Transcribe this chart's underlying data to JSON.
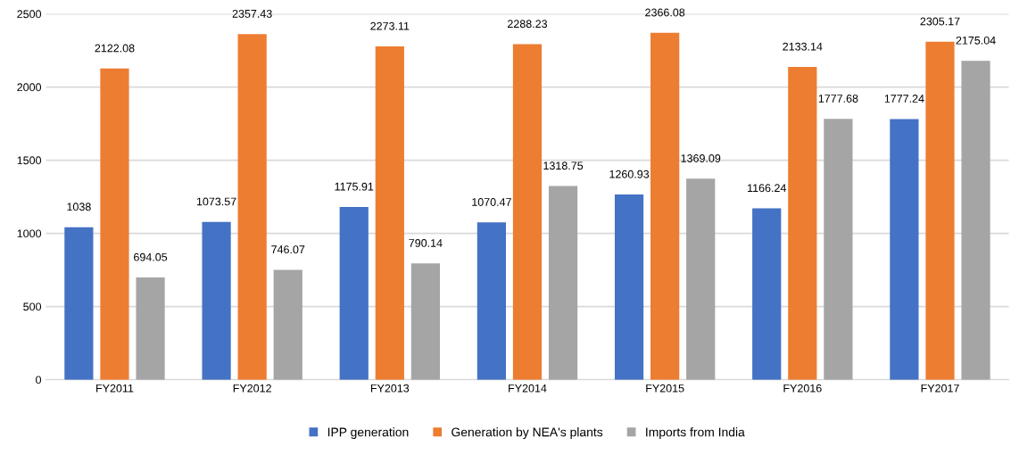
{
  "chart_data": {
    "type": "bar",
    "categories": [
      "FY2011",
      "FY2012",
      "FY2013",
      "FY2014",
      "FY2015",
      "FY2016",
      "FY2017"
    ],
    "series": [
      {
        "name": "IPP generation",
        "color": "#4472c4",
        "values": [
          1038,
          1073.57,
          1175.91,
          1070.47,
          1260.93,
          1166.24,
          1777.24
        ]
      },
      {
        "name": "Generation by NEA's plants",
        "color": "#ed7d31",
        "values": [
          2122.08,
          2357.43,
          2273.11,
          2288.23,
          2366.08,
          2133.14,
          2305.17
        ]
      },
      {
        "name": "Imports from India",
        "color": "#a5a5a5",
        "values": [
          694.05,
          746.07,
          790.14,
          1318.75,
          1369.09,
          1777.68,
          2175.04
        ]
      }
    ],
    "ylim": [
      0,
      2500
    ],
    "yticks": [
      0,
      500,
      1000,
      1500,
      2000,
      2500
    ],
    "grid": "y",
    "legend": "bottom",
    "data_labels": true
  }
}
